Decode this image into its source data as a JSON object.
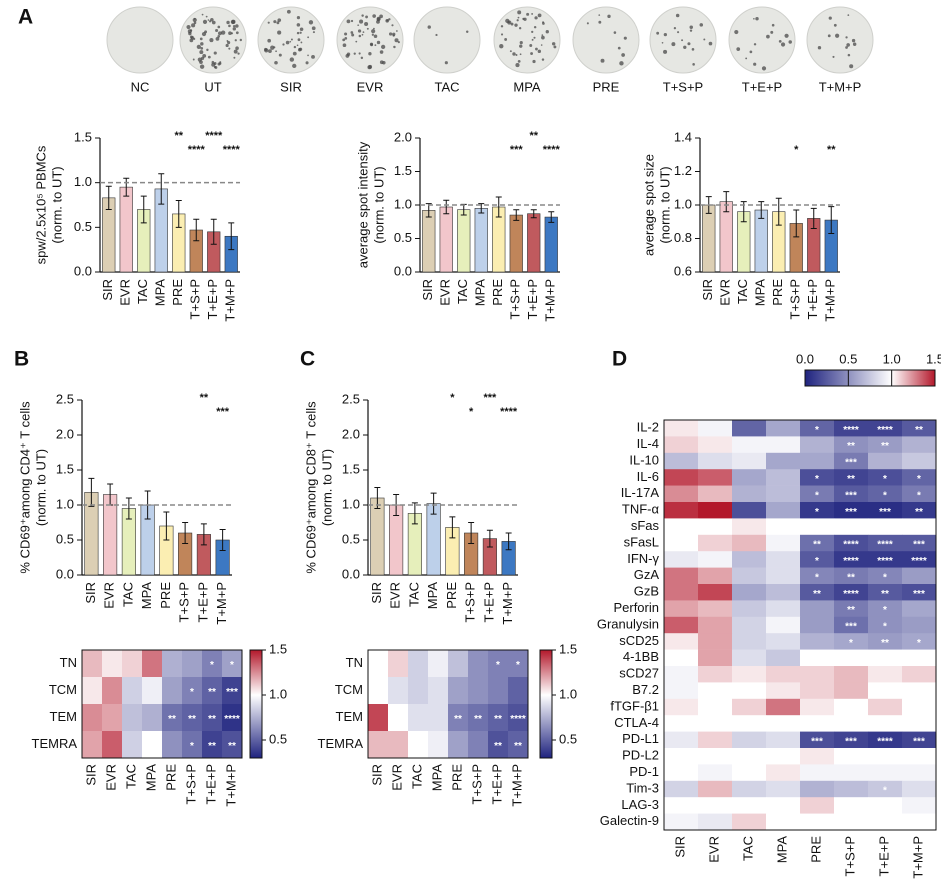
{
  "plates": {
    "labels": [
      "NC",
      "UT",
      "SIR",
      "EVR",
      "TAC",
      "MPA",
      "PRE",
      "T+S+P",
      "T+E+P",
      "T+M+P"
    ]
  },
  "chart_data": [
    {
      "type": "bar",
      "panel": "A",
      "ylabel": [
        "spw/2.5x10⁵ PBMCs",
        "(norm. to UT)"
      ],
      "categories": [
        "SIR",
        "EVR",
        "TAC",
        "MPA",
        "PRE",
        "T+S+P",
        "T+E+P",
        "T+M+P"
      ],
      "values": [
        0.83,
        0.95,
        0.7,
        0.93,
        0.65,
        0.47,
        0.45,
        0.4
      ],
      "errors": [
        0.13,
        0.1,
        0.15,
        0.17,
        0.15,
        0.12,
        0.14,
        0.15
      ],
      "annotations": [
        null,
        null,
        null,
        null,
        "**",
        "****",
        "****",
        "****"
      ],
      "colors": [
        "#dccfb4",
        "#f2c6cb",
        "#e6efbb",
        "#bdd0ea",
        "#fbeeb2",
        "#c0855a",
        "#c05a5e",
        "#3c78c2"
      ],
      "ylim": [
        0,
        1.5
      ],
      "yticks": [
        {
          "value": 0,
          "label": "0.0"
        },
        0.5,
        {
          "value": 1,
          "label": "1.0"
        },
        1.5
      ],
      "reference_line": 1
    },
    {
      "type": "bar",
      "ylabel": [
        "average spot intensity",
        "(norm. to UT)"
      ],
      "categories": [
        "SIR",
        "EVR",
        "TAC",
        "MPA",
        "PRE",
        "T+S+P",
        "T+E+P",
        "T+M+P"
      ],
      "values": [
        0.92,
        0.97,
        0.93,
        0.95,
        0.97,
        0.85,
        0.87,
        0.82
      ],
      "errors": [
        0.1,
        0.1,
        0.08,
        0.07,
        0.15,
        0.08,
        0.06,
        0.08
      ],
      "annotations": [
        null,
        null,
        null,
        null,
        null,
        "***",
        "**",
        "****"
      ],
      "colors": [
        "#dccfb4",
        "#f2c6cb",
        "#e6efbb",
        "#bdd0ea",
        "#fbeeb2",
        "#c0855a",
        "#c05a5e",
        "#3c78c2"
      ],
      "ylim": [
        0,
        2
      ],
      "yticks": [
        {
          "value": 0,
          "label": "0.0"
        },
        0.5,
        {
          "value": 1,
          "label": "1.0"
        },
        1.5,
        {
          "value": 2,
          "label": "2.0"
        }
      ],
      "reference_line": 1
    },
    {
      "type": "bar",
      "ylabel": [
        "average spot size",
        "(norm. to UT)"
      ],
      "categories": [
        "SIR",
        "EVR",
        "TAC",
        "MPA",
        "PRE",
        "T+S+P",
        "T+E+P",
        "T+M+P"
      ],
      "values": [
        1.0,
        1.02,
        0.96,
        0.97,
        0.96,
        0.89,
        0.92,
        0.91
      ],
      "errors": [
        0.05,
        0.06,
        0.06,
        0.05,
        0.08,
        0.08,
        0.06,
        0.08
      ],
      "annotations": [
        null,
        null,
        null,
        null,
        null,
        "*",
        null,
        "**"
      ],
      "colors": [
        "#dccfb4",
        "#f2c6cb",
        "#e6efbb",
        "#bdd0ea",
        "#fbeeb2",
        "#c0855a",
        "#c05a5e",
        "#3c78c2"
      ],
      "ylim": [
        0.6,
        1.4
      ],
      "yticks": [
        0.6,
        0.8,
        {
          "value": 1,
          "label": "1.0"
        },
        1.2,
        1.4
      ],
      "reference_line": 1
    },
    {
      "type": "bar",
      "panel": "B",
      "ylabel": [
        "% CD69⁺among CD4⁺ T cells",
        "(norm. to UT)"
      ],
      "categories": [
        "SIR",
        "EVR",
        "TAC",
        "MPA",
        "PRE",
        "T+S+P",
        "T+E+P",
        "T+M+P"
      ],
      "values": [
        1.18,
        1.15,
        0.95,
        1.0,
        0.7,
        0.6,
        0.58,
        0.5
      ],
      "errors": [
        0.2,
        0.15,
        0.15,
        0.2,
        0.2,
        0.15,
        0.15,
        0.15
      ],
      "annotations": [
        null,
        null,
        null,
        null,
        null,
        null,
        "**",
        "***"
      ],
      "colors": [
        "#dccfb4",
        "#f2c6cb",
        "#e6efbb",
        "#bdd0ea",
        "#fbeeb2",
        "#c0855a",
        "#c05a5e",
        "#3c78c2"
      ],
      "ylim": [
        0,
        2.5
      ],
      "yticks": [
        {
          "value": 0,
          "label": "0.0"
        },
        0.5,
        {
          "value": 1,
          "label": "1.0"
        },
        1.5,
        {
          "value": 2,
          "label": "2.0"
        },
        2.5
      ],
      "reference_line": 1
    },
    {
      "type": "heatmap",
      "colorbar": "right",
      "rows": [
        "TN",
        "TCM",
        "TEM",
        "TEMRA"
      ],
      "columns": [
        "SIR",
        "EVR",
        "TAC",
        "MPA",
        "PRE",
        "T+S+P",
        "T+E+P",
        "T+M+P"
      ],
      "values": [
        [
          1.15,
          1.05,
          1.1,
          1.3,
          0.75,
          0.7,
          0.6,
          0.7
        ],
        [
          1.05,
          1.25,
          0.85,
          0.95,
          0.7,
          0.6,
          0.5,
          0.4
        ],
        [
          1.25,
          1.2,
          0.8,
          0.75,
          0.55,
          0.5,
          0.45,
          0.35
        ],
        [
          1.2,
          1.35,
          0.85,
          1.0,
          0.65,
          0.55,
          0.4,
          0.45
        ]
      ],
      "annotations": [
        [
          null,
          null,
          null,
          null,
          null,
          null,
          "*",
          "*"
        ],
        [
          null,
          null,
          null,
          null,
          null,
          "*",
          "**",
          "***"
        ],
        [
          null,
          null,
          null,
          null,
          "**",
          "**",
          "**",
          "****"
        ],
        [
          null,
          null,
          null,
          null,
          null,
          "*",
          "**",
          "**"
        ]
      ],
      "zlim": [
        0.3,
        1.5
      ],
      "center": 1,
      "low_color": "#1f237f",
      "high_color": "#b3182b",
      "zticks": [
        0.5,
        {
          "value": 1,
          "label": "1.0"
        },
        1.5
      ]
    },
    {
      "type": "bar",
      "panel": "C",
      "ylabel": [
        "% CD69⁺among CD8⁺ T cells",
        "(norm. to UT)"
      ],
      "categories": [
        "SIR",
        "EVR",
        "TAC",
        "MPA",
        "PRE",
        "T+S+P",
        "T+E+P",
        "T+M+P"
      ],
      "values": [
        1.1,
        1.0,
        0.88,
        1.02,
        0.68,
        0.6,
        0.52,
        0.48
      ],
      "errors": [
        0.15,
        0.15,
        0.15,
        0.15,
        0.15,
        0.15,
        0.12,
        0.12
      ],
      "annotations": [
        null,
        null,
        null,
        null,
        "*",
        "*",
        "***",
        "****"
      ],
      "colors": [
        "#dccfb4",
        "#f2c6cb",
        "#e6efbb",
        "#bdd0ea",
        "#fbeeb2",
        "#c0855a",
        "#c05a5e",
        "#3c78c2"
      ],
      "ylim": [
        0,
        2.5
      ],
      "yticks": [
        {
          "value": 0,
          "label": "0.0"
        },
        0.5,
        {
          "value": 1,
          "label": "1.0"
        },
        1.5,
        {
          "value": 2,
          "label": "2.0"
        },
        2.5
      ],
      "reference_line": 1
    },
    {
      "type": "heatmap",
      "colorbar": "right",
      "rows": [
        "TN",
        "TCM",
        "TEM",
        "TEMRA"
      ],
      "columns": [
        "SIR",
        "EVR",
        "TAC",
        "MPA",
        "PRE",
        "T+S+P",
        "T+E+P",
        "T+M+P"
      ],
      "values": [
        [
          1.0,
          1.1,
          0.85,
          0.95,
          0.8,
          0.65,
          0.6,
          0.6
        ],
        [
          1.0,
          0.9,
          0.85,
          0.9,
          0.7,
          0.65,
          0.6,
          0.5
        ],
        [
          1.4,
          1.0,
          0.9,
          0.9,
          0.6,
          0.55,
          0.5,
          0.45
        ],
        [
          1.15,
          1.15,
          1.0,
          0.95,
          0.7,
          0.6,
          0.45,
          0.5
        ]
      ],
      "annotations": [
        [
          null,
          null,
          null,
          null,
          null,
          null,
          "*",
          "*"
        ],
        [
          null,
          null,
          null,
          null,
          null,
          null,
          null,
          null
        ],
        [
          null,
          null,
          null,
          null,
          "**",
          "**",
          "**",
          "****"
        ],
        [
          null,
          null,
          null,
          null,
          null,
          null,
          "**",
          "**"
        ]
      ],
      "zlim": [
        0.3,
        1.5
      ],
      "center": 1,
      "low_color": "#1f237f",
      "high_color": "#b3182b",
      "zticks": [
        0.5,
        {
          "value": 1,
          "label": "1.0"
        },
        1.5
      ]
    },
    {
      "type": "heatmap",
      "panel": "D",
      "colorbar": "top",
      "rows": [
        "IL-2",
        "IL-4",
        "IL-10",
        "IL-6",
        "IL-17A",
        "TNF-α",
        "sFas",
        "sFasL",
        "IFN-γ",
        "GzA",
        "GzB",
        "Perforin",
        "Granulysin",
        "sCD25",
        "4-1BB",
        "sCD27",
        "B7.2",
        "fTGF-β1",
        "CTLA-4",
        "PD-L1",
        "PD-L2",
        "PD-1",
        "Tim-3",
        "LAG-3",
        "Galectin-9"
      ],
      "columns": [
        "SIR",
        "EVR",
        "TAC",
        "MPA",
        "PRE",
        "T+S+P",
        "T+E+P",
        "T+M+P"
      ],
      "values": [
        [
          1.05,
          0.95,
          0.3,
          0.6,
          0.3,
          0.15,
          0.15,
          0.25
        ],
        [
          1.1,
          1.05,
          0.95,
          0.95,
          0.65,
          0.5,
          0.55,
          0.65
        ],
        [
          0.7,
          0.85,
          0.9,
          0.6,
          0.6,
          0.4,
          0.65,
          0.75
        ],
        [
          1.4,
          1.35,
          0.6,
          0.7,
          0.2,
          0.15,
          0.2,
          0.3
        ],
        [
          1.25,
          1.15,
          0.65,
          0.7,
          0.4,
          0.25,
          0.3,
          0.4
        ],
        [
          1.45,
          1.5,
          0.2,
          0.6,
          0.1,
          0.05,
          0.05,
          0.1
        ],
        [
          1.0,
          1.0,
          1.05,
          1.0,
          1.0,
          1.0,
          1.0,
          1.0
        ],
        [
          1.0,
          1.1,
          1.15,
          0.95,
          0.35,
          0.2,
          0.25,
          0.25
        ],
        [
          0.9,
          0.95,
          0.7,
          0.85,
          0.25,
          0.1,
          0.1,
          0.1
        ],
        [
          1.3,
          1.2,
          0.75,
          0.85,
          0.45,
          0.4,
          0.45,
          0.55
        ],
        [
          1.3,
          1.4,
          0.6,
          0.7,
          0.25,
          0.15,
          0.25,
          0.2
        ],
        [
          1.2,
          1.15,
          0.75,
          0.85,
          0.55,
          0.4,
          0.5,
          0.6
        ],
        [
          1.35,
          1.2,
          0.8,
          0.95,
          0.55,
          0.35,
          0.5,
          0.55
        ],
        [
          1.05,
          1.2,
          0.8,
          0.85,
          0.65,
          0.6,
          0.55,
          0.6
        ],
        [
          1.0,
          1.2,
          0.85,
          0.75,
          1.0,
          1.0,
          1.0,
          1.0
        ],
        [
          0.95,
          1.1,
          1.05,
          1.1,
          1.1,
          1.15,
          1.05,
          1.1
        ],
        [
          0.95,
          1.0,
          1.0,
          1.05,
          1.1,
          1.15,
          1.0,
          1.0
        ],
        [
          1.05,
          1.0,
          1.1,
          1.3,
          1.05,
          1.0,
          1.1,
          1.0
        ],
        [
          1.0,
          1.0,
          1.0,
          1.0,
          1.0,
          1.0,
          1.0,
          1.0
        ],
        [
          0.9,
          1.1,
          0.8,
          0.85,
          0.2,
          0.15,
          0.1,
          0.15
        ],
        [
          1.0,
          1.0,
          1.0,
          1.0,
          1.05,
          1.0,
          1.0,
          1.0
        ],
        [
          1.0,
          0.95,
          1.0,
          1.05,
          0.95,
          0.95,
          0.95,
          0.95
        ],
        [
          0.8,
          1.15,
          0.8,
          0.85,
          0.65,
          0.7,
          0.75,
          0.85
        ],
        [
          1.0,
          1.0,
          1.0,
          1.0,
          1.1,
          1.0,
          1.0,
          0.95
        ],
        [
          0.95,
          0.9,
          1.1,
          1.0,
          1.0,
          1.0,
          1.0,
          1.0
        ]
      ],
      "annotations": [
        [
          null,
          null,
          null,
          null,
          "*",
          "****",
          "****",
          "**"
        ],
        [
          null,
          null,
          null,
          null,
          null,
          "**",
          "**",
          null
        ],
        [
          null,
          null,
          null,
          null,
          null,
          "***",
          null,
          null
        ],
        [
          null,
          null,
          null,
          null,
          "*",
          "**",
          "*",
          "*"
        ],
        [
          null,
          null,
          null,
          null,
          "*",
          "***",
          "*",
          "*"
        ],
        [
          null,
          null,
          null,
          null,
          "*",
          "***",
          "***",
          "**"
        ],
        [
          null,
          null,
          null,
          null,
          null,
          null,
          null,
          null
        ],
        [
          null,
          null,
          null,
          null,
          "**",
          "****",
          "****",
          "***"
        ],
        [
          null,
          null,
          null,
          null,
          "*",
          "****",
          "****",
          "****"
        ],
        [
          null,
          null,
          null,
          null,
          "*",
          "**",
          "*",
          null
        ],
        [
          null,
          null,
          null,
          null,
          "**",
          "****",
          "**",
          "***"
        ],
        [
          null,
          null,
          null,
          null,
          null,
          "**",
          "*",
          null
        ],
        [
          null,
          null,
          null,
          null,
          null,
          "***",
          "*",
          null
        ],
        [
          null,
          null,
          null,
          null,
          null,
          "*",
          "**",
          "*"
        ],
        [
          null,
          null,
          null,
          null,
          null,
          null,
          null,
          null
        ],
        [
          null,
          null,
          null,
          null,
          null,
          null,
          null,
          null
        ],
        [
          null,
          null,
          null,
          null,
          null,
          null,
          null,
          null
        ],
        [
          null,
          null,
          null,
          null,
          null,
          null,
          null,
          null
        ],
        [
          null,
          null,
          null,
          null,
          null,
          null,
          null,
          null
        ],
        [
          null,
          null,
          null,
          null,
          "***",
          "***",
          "****",
          "***"
        ],
        [
          null,
          null,
          null,
          null,
          null,
          null,
          null,
          null
        ],
        [
          null,
          null,
          null,
          null,
          null,
          null,
          null,
          null
        ],
        [
          null,
          null,
          null,
          null,
          null,
          null,
          "*",
          null
        ],
        [
          null,
          null,
          null,
          null,
          null,
          null,
          null,
          null
        ],
        [
          null,
          null,
          null,
          null,
          null,
          null,
          null,
          null
        ]
      ],
      "zlim": [
        0,
        1.5
      ],
      "center": 1,
      "low_color": "#1f237f",
      "high_color": "#b3182b",
      "zticks": [
        {
          "value": 0,
          "label": "0.0"
        },
        0.5,
        {
          "value": 1,
          "label": "1.0"
        },
        1.5
      ]
    }
  ]
}
